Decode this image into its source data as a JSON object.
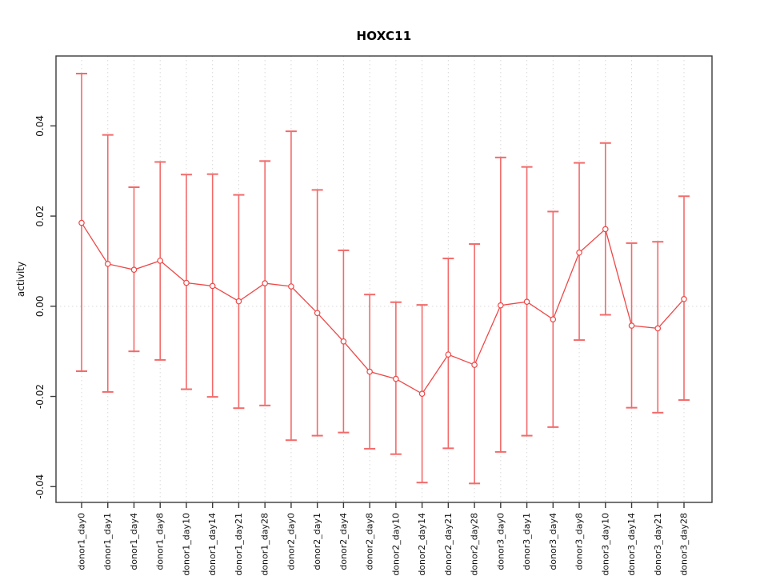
{
  "window": {
    "title": "HOXC11"
  },
  "chart_data": {
    "type": "scatter",
    "subtype": "points-with-error-bars-and-connecting-line",
    "title": "HOXC11",
    "xlabel": "",
    "ylabel": "activity",
    "legend": "none",
    "grid": "dotted vertical line at every category; dotted horizontal line at y=0",
    "categories": [
      "donor1_day0",
      "donor1_day1",
      "donor1_day4",
      "donor1_day8",
      "donor1_day10",
      "donor1_day14",
      "donor1_day21",
      "donor1_day28",
      "donor2_day0",
      "donor2_day1",
      "donor2_day4",
      "donor2_day8",
      "donor2_day10",
      "donor2_day14",
      "donor2_day21",
      "donor2_day28",
      "donor3_day0",
      "donor3_day1",
      "donor3_day4",
      "donor3_day8",
      "donor3_day10",
      "donor3_day14",
      "donor3_day21",
      "donor3_day28"
    ],
    "series": [
      {
        "name": "activity",
        "values": [
          0.0185,
          0.0094,
          0.0081,
          0.0101,
          0.0052,
          0.0045,
          0.0011,
          0.0051,
          0.0044,
          -0.0015,
          -0.0078,
          -0.0145,
          -0.0161,
          -0.0194,
          -0.0107,
          -0.013,
          0.0002,
          0.001,
          -0.0029,
          0.0119,
          0.0171,
          -0.0043,
          -0.0049,
          0.0016
        ],
        "upper": [
          0.0516,
          0.038,
          0.0264,
          0.032,
          0.0292,
          0.0293,
          0.0247,
          0.0322,
          0.0388,
          0.0258,
          0.0124,
          0.0026,
          0.0009,
          0.0003,
          0.0106,
          0.0138,
          0.033,
          0.0309,
          0.021,
          0.0318,
          0.0362,
          0.014,
          0.0143,
          0.0244
        ],
        "lower": [
          -0.0144,
          -0.019,
          -0.01,
          -0.0119,
          -0.0184,
          -0.0201,
          -0.0226,
          -0.022,
          -0.0297,
          -0.0287,
          -0.028,
          -0.0316,
          -0.0328,
          -0.0391,
          -0.0315,
          -0.0393,
          -0.0323,
          -0.0287,
          -0.0268,
          -0.0075,
          -0.0019,
          -0.0225,
          -0.0236,
          -0.0208
        ]
      }
    ],
    "yticks": [
      -0.04,
      -0.02,
      0,
      0.02,
      0.04
    ],
    "ytick_labels": [
      "-0.04",
      "-0.02",
      "0.00",
      "0.02",
      "0.04"
    ],
    "ylim": [
      -0.0435,
      0.0555
    ],
    "colors": {
      "point_line": "#ee4747",
      "error_bar": "#f36a6a",
      "grid": "#d9d9d9",
      "frame": "#3a3a3a",
      "text": "#111111"
    }
  }
}
